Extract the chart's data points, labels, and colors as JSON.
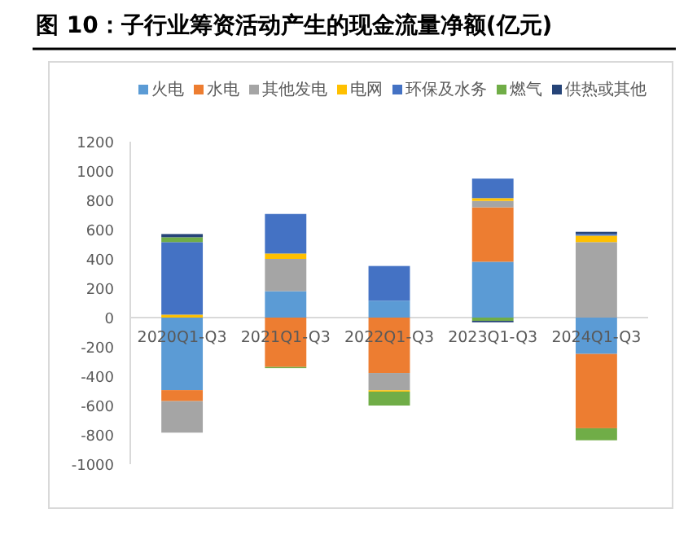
{
  "chart_data": {
    "type": "bar",
    "title": "图 10：子行业筹资活动产生的现金流量净额(亿元)",
    "categories": [
      "2020Q1-Q3",
      "2021Q1-Q3",
      "2022Q1-Q3",
      "2023Q1-Q3",
      "2024Q1-Q3"
    ],
    "stacked": true,
    "legend": "top",
    "ylim": [
      -1000,
      1200
    ],
    "yticks": [
      -1000,
      -800,
      -600,
      -400,
      -200,
      0,
      200,
      400,
      600,
      800,
      1000,
      1200
    ],
    "series": [
      {
        "name": "火电",
        "color": "#5b9bd5",
        "values": [
          -495,
          180,
          115,
          381,
          -248
        ]
      },
      {
        "name": "水电",
        "color": "#ed7d31",
        "values": [
          -75,
          -337,
          -378,
          371,
          -507
        ]
      },
      {
        "name": "其他发电",
        "color": "#a5a5a5",
        "values": [
          -215,
          220,
          -118,
          44,
          515
        ]
      },
      {
        "name": "电网",
        "color": "#ffc000",
        "values": [
          20,
          37,
          -9,
          19,
          44
        ]
      },
      {
        "name": "环保及水务",
        "color": "#4472c4",
        "values": [
          495,
          270,
          237,
          133,
          12
        ]
      },
      {
        "name": "燃气",
        "color": "#70ad47",
        "values": [
          33,
          -8,
          -95,
          -22,
          -82
        ]
      },
      {
        "name": "供热或其他",
        "color": "#264478",
        "values": [
          22,
          0,
          0,
          -10,
          14
        ]
      }
    ]
  }
}
